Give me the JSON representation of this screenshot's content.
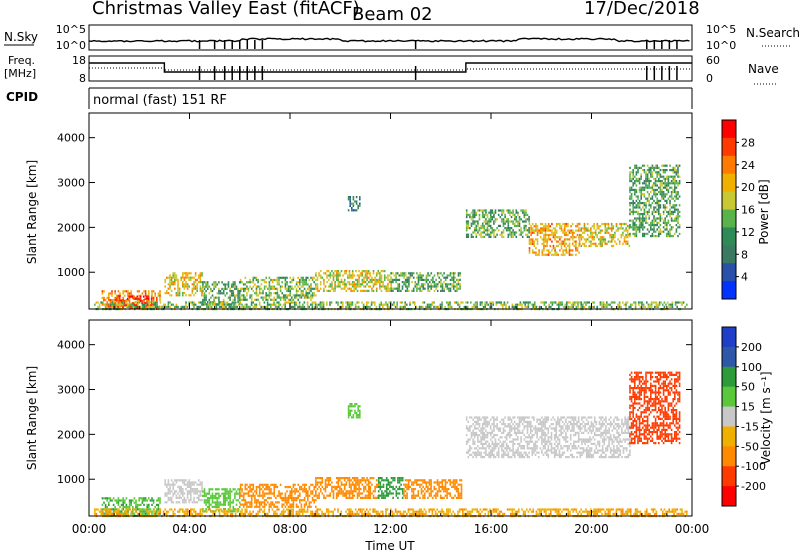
{
  "header": {
    "station": "Christmas Valley East (fitACF)",
    "beam": "Beam 02",
    "date": "17/Dec/2018"
  },
  "strip_labels": {
    "nsky": "N.Sky",
    "nsky_ticks": [
      "10^5",
      "10^0"
    ],
    "nsearch": "N.Search",
    "nsearch_ticks": [
      "10^5",
      "10^0"
    ],
    "freq_label_1": "Freq.",
    "freq_label_2": "[MHz]",
    "freq_ticks": [
      "18",
      "8"
    ],
    "nave": "Nave",
    "nave_ticks": [
      "60",
      "0"
    ],
    "cpid": "CPID",
    "cpid_text": "normal (fast) 151 RF"
  },
  "colors": {
    "power_scale": [
      "#0033ff",
      "#2a4fa8",
      "#3a7a63",
      "#2e8b57",
      "#5ab34a",
      "#c8c832",
      "#f0b000",
      "#ff7a00",
      "#ff3a00",
      "#ff0000"
    ],
    "velocity_scale": [
      "#1f3fc8",
      "#2f57a8",
      "#2a7a6a",
      "#2e9b3a",
      "#5ac83a",
      "#c8c8c8",
      "#f0b000",
      "#ff8a00",
      "#ff5a00",
      "#ff2a00",
      "#ff0000"
    ]
  },
  "chart_data": [
    {
      "type": "heatmap",
      "panel": "power",
      "xlabel": "",
      "ylabel": "Slant Range [km]",
      "colorbar_label": "Power [dB]",
      "colorbar_ticks": [
        "28",
        "24",
        "20",
        "16",
        "12",
        "8",
        "4"
      ],
      "x_ticks": [
        "00:00",
        "04:00",
        "08:00",
        "12:00",
        "16:00",
        "20:00",
        "00:00"
      ],
      "y_ticks": [
        "4000",
        "3000",
        "2000",
        "1000"
      ],
      "xlim": [
        0,
        24
      ],
      "ylim": [
        180,
        4550
      ],
      "grid": false,
      "regions": [
        {
          "x": [
            0.5,
            2.8
          ],
          "y": [
            180,
            600
          ],
          "value": 22
        },
        {
          "x": [
            1.0,
            2.5
          ],
          "y": [
            200,
            480
          ],
          "value": 27
        },
        {
          "x": [
            3.0,
            4.5
          ],
          "y": [
            500,
            1000
          ],
          "value": 18
        },
        {
          "x": [
            4.5,
            6.0
          ],
          "y": [
            300,
            800
          ],
          "value": 12
        },
        {
          "x": [
            6.0,
            9.0
          ],
          "y": [
            400,
            900
          ],
          "value": 14
        },
        {
          "x": [
            9.0,
            12.0
          ],
          "y": [
            600,
            1050
          ],
          "value": 17
        },
        {
          "x": [
            12.0,
            14.8
          ],
          "y": [
            600,
            1000
          ],
          "value": 12
        },
        {
          "x": [
            10.3,
            10.8
          ],
          "y": [
            2400,
            2700
          ],
          "value": 8
        },
        {
          "x": [
            15.0,
            17.5
          ],
          "y": [
            1800,
            2400
          ],
          "value": 12
        },
        {
          "x": [
            17.5,
            19.5
          ],
          "y": [
            1400,
            2100
          ],
          "value": 20
        },
        {
          "x": [
            19.5,
            21.5
          ],
          "y": [
            1600,
            2100
          ],
          "value": 18
        },
        {
          "x": [
            21.5,
            23.5
          ],
          "y": [
            1800,
            3400
          ],
          "value": 12
        },
        {
          "x": [
            0.2,
            23.8
          ],
          "y": [
            180,
            350
          ],
          "value": 14
        }
      ]
    },
    {
      "type": "heatmap",
      "panel": "velocity",
      "xlabel": "Time UT",
      "ylabel": "Slant Range [km]",
      "colorbar_label": "Velocity [m s⁻¹]",
      "colorbar_ticks": [
        "200",
        "100",
        "50",
        "15",
        "-15",
        "-50",
        "-100",
        "-200"
      ],
      "x_ticks": [
        "00:00",
        "04:00",
        "08:00",
        "12:00",
        "16:00",
        "20:00",
        "00:00"
      ],
      "y_ticks": [
        "4000",
        "3000",
        "2000",
        "1000"
      ],
      "xlim": [
        0,
        24
      ],
      "ylim": [
        180,
        4550
      ],
      "grid": false,
      "regions": [
        {
          "x": [
            0.5,
            2.8
          ],
          "y": [
            180,
            600
          ],
          "value": 30
        },
        {
          "x": [
            3.0,
            4.5
          ],
          "y": [
            500,
            1000
          ],
          "value": 0
        },
        {
          "x": [
            4.5,
            6.0
          ],
          "y": [
            300,
            800
          ],
          "value": 20
        },
        {
          "x": [
            6.0,
            9.0
          ],
          "y": [
            400,
            900
          ],
          "value": -40
        },
        {
          "x": [
            9.0,
            11.5
          ],
          "y": [
            600,
            1050
          ],
          "value": -60
        },
        {
          "x": [
            11.5,
            12.5
          ],
          "y": [
            600,
            1050
          ],
          "value": 40
        },
        {
          "x": [
            12.5,
            14.8
          ],
          "y": [
            600,
            1000
          ],
          "value": -60
        },
        {
          "x": [
            10.3,
            10.8
          ],
          "y": [
            2400,
            2700
          ],
          "value": 20
        },
        {
          "x": [
            15.0,
            21.5
          ],
          "y": [
            1500,
            2400
          ],
          "value": 0
        },
        {
          "x": [
            21.5,
            23.5
          ],
          "y": [
            1800,
            3400
          ],
          "value": -100
        },
        {
          "x": [
            0.2,
            23.8
          ],
          "y": [
            180,
            350
          ],
          "value": -30
        }
      ]
    }
  ]
}
